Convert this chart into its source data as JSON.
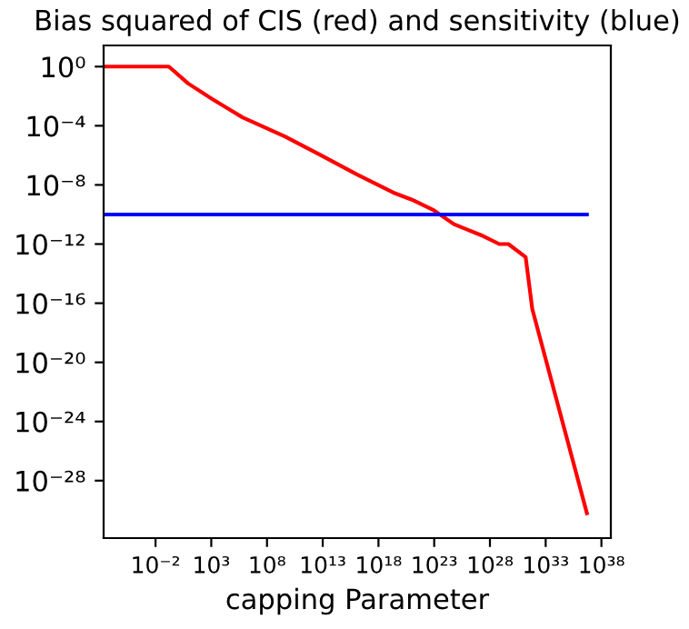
{
  "chart_data": {
    "type": "line",
    "title": "Bias squared of CIS (red) and sensitivity (blue)",
    "xlabel": "capping Parameter",
    "log": "xy",
    "grid": false,
    "marker": "none",
    "line_style": "solid",
    "xlim": [
      2.2e-07,
      7e+38
    ],
    "ylim": [
      1.3e-32,
      27
    ],
    "xticks": [
      {
        "value": 0.01,
        "label": "10⁻²"
      },
      {
        "value": 1000.0,
        "label": "10³"
      },
      {
        "value": 100000000.0,
        "label": "10⁸"
      },
      {
        "value": 10000000000000.0,
        "label": "10¹³"
      },
      {
        "value": 1e+18,
        "label": "10¹⁸"
      },
      {
        "value": 1e+23,
        "label": "10²³"
      },
      {
        "value": 1e+28,
        "label": "10²⁸"
      },
      {
        "value": 1e+33,
        "label": "10³³"
      },
      {
        "value": 1e+38,
        "label": "10³⁸"
      }
    ],
    "yticks": [
      {
        "value": 1,
        "label": "10⁰"
      },
      {
        "value": 0.0001,
        "label": "10⁻⁴"
      },
      {
        "value": 1e-08,
        "label": "10⁻⁸"
      },
      {
        "value": 1e-12,
        "label": "10⁻¹²"
      },
      {
        "value": 1e-16,
        "label": "10⁻¹⁶"
      },
      {
        "value": 1e-20,
        "label": "10⁻²⁰"
      },
      {
        "value": 1e-24,
        "label": "10⁻²⁴"
      },
      {
        "value": 1e-28,
        "label": "10⁻²⁸"
      }
    ],
    "series": [
      {
        "color": "#ff0000",
        "x": [
          2.2e-07,
          0.155,
          8.5,
          1230,
          630000.0,
          4000000000.0,
          7100000000000.0,
          1.26e+16,
          2.2e+19,
          1e+21,
          9.5e+22,
          5.9e+24,
          1.6e+27,
          6.9e+28,
          4.5e+29,
          1.6e+31,
          6.3e+31,
          5e+36
        ],
        "values": [
          1,
          1,
          0.072,
          0.0063,
          0.00037,
          1.9e-05,
          1e-06,
          5e-08,
          3e-09,
          1e-09,
          1.9e-10,
          2.2e-11,
          4e-12,
          1e-12,
          1e-12,
          1.3e-13,
          4e-17,
          6.3e-31
        ]
      },
      {
        "color": "#0000ff",
        "x": [
          2.2e-07,
          5e+36
        ],
        "values": [
          1e-10,
          1e-10
        ]
      }
    ]
  }
}
